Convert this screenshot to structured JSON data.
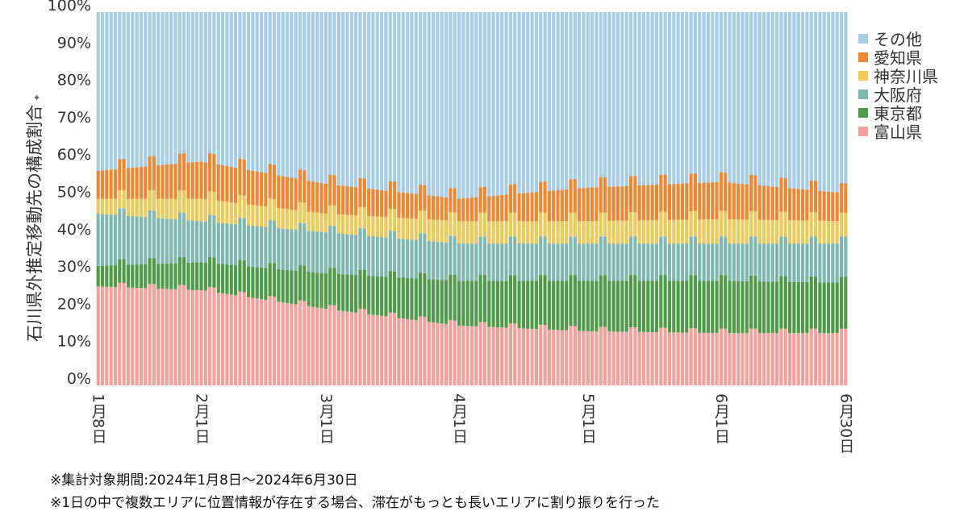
{
  "chart_data": {
    "type": "stacked-bar-100",
    "ylabel": "石川県外推定移動先の構成割合",
    "ylim": [
      0,
      100
    ],
    "yticks": [
      "0%",
      "10%",
      "20%",
      "30%",
      "40%",
      "50%",
      "60%",
      "70%",
      "80%",
      "90%",
      "100%"
    ],
    "xticks": [
      "1月8日",
      "2月1日",
      "3月1日",
      "4月1日",
      "5月1日",
      "6月1日",
      "6月30日"
    ],
    "xtick_index": [
      0,
      24,
      53,
      84,
      114,
      145,
      174
    ],
    "n_days": 175,
    "date_range": [
      "2024-01-08",
      "2024-06-30"
    ],
    "legend": [
      {
        "name": "その他",
        "color": "#a6cce6"
      },
      {
        "name": "愛知県",
        "color": "#ee8733"
      },
      {
        "name": "神奈川県",
        "color": "#edc95a"
      },
      {
        "name": "大阪府",
        "color": "#7fb8b0"
      },
      {
        "name": "東京都",
        "color": "#4e9a46"
      },
      {
        "name": "富山県",
        "color": "#f4a09c"
      }
    ],
    "stack_order": [
      "富山県",
      "東京都",
      "大阪府",
      "神奈川県",
      "愛知県",
      "その他"
    ],
    "key_dates": [
      "2024-01-08",
      "2024-02-01",
      "2024-03-01",
      "2024-04-01",
      "2024-05-01",
      "2024-06-01",
      "2024-06-30"
    ],
    "cumulative_pct_at_key_dates": {
      "富山県": [
        26.5,
        25.5,
        20.5,
        16.0,
        14.5,
        14.0,
        14.0
      ],
      "東京都": [
        32.0,
        33.0,
        30.0,
        28.0,
        28.0,
        28.0,
        27.5
      ],
      "大阪府": [
        46.0,
        44.0,
        41.0,
        38.0,
        38.0,
        38.0,
        38.0
      ],
      "神奈川県": [
        50.0,
        50.0,
        46.0,
        44.0,
        44.0,
        44.5,
        44.0
      ],
      "愛知県": [
        57.5,
        60.0,
        54.0,
        50.0,
        53.0,
        54.5,
        51.5
      ],
      "その他": [
        100,
        100,
        100,
        100,
        100,
        100,
        100
      ]
    }
  },
  "notes": {
    "period": "※集計対象期間:2024年1月8日～2024年6月30日",
    "method": "※1日の中で複数エリアに位置情報が存在する場合、滞在がもっとも長いエリアに割り振りを行った"
  },
  "ylabel_marker": "✦"
}
